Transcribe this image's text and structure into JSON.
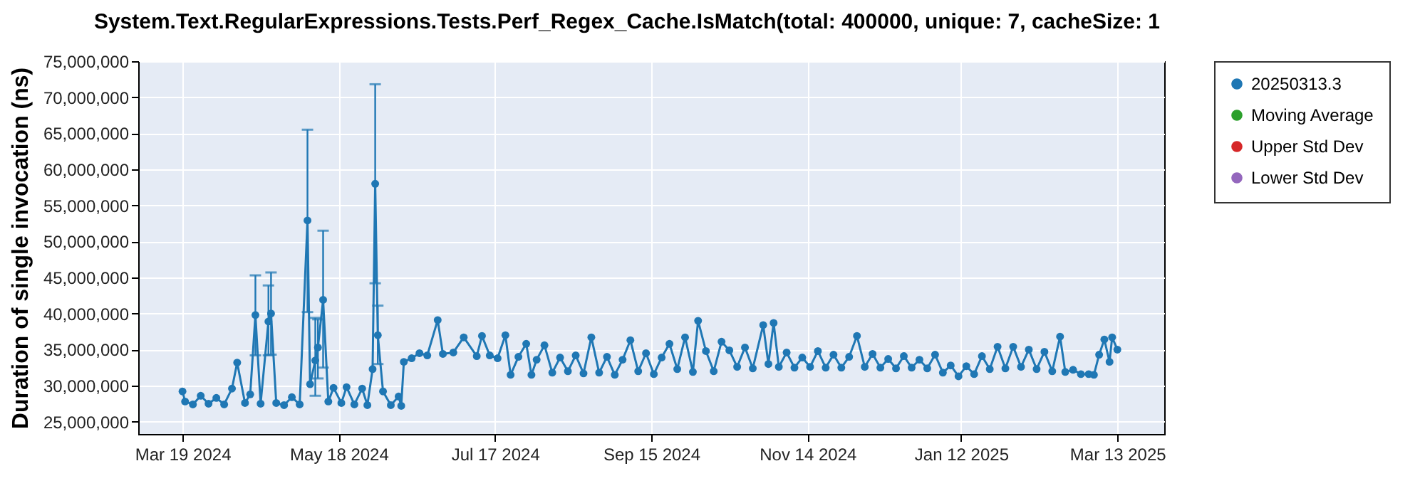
{
  "chart_data": {
    "type": "line",
    "title": "System.Text.RegularExpressions.Tests.Perf_Regex_Cache.IsMatch(total: 400000, unique: 7, cacheSize: 1",
    "ylabel": "Duration of single invocation (ns)",
    "x": [
      "2024-03-19",
      "2024-03-20",
      "2024-03-23",
      "2024-03-26",
      "2024-03-29",
      "2024-04-01",
      "2024-04-04",
      "2024-04-07",
      "2024-04-09",
      "2024-04-12",
      "2024-04-14",
      "2024-04-16",
      "2024-04-18",
      "2024-04-21",
      "2024-04-22",
      "2024-04-24",
      "2024-04-27",
      "2024-04-30",
      "2024-05-03",
      "2024-05-06",
      "2024-05-07",
      "2024-05-09",
      "2024-05-10",
      "2024-05-12",
      "2024-05-14",
      "2024-05-16",
      "2024-05-19",
      "2024-05-21",
      "2024-05-24",
      "2024-05-27",
      "2024-05-29",
      "2024-05-31",
      "2024-06-01",
      "2024-06-02",
      "2024-06-04",
      "2024-06-07",
      "2024-06-10",
      "2024-06-11",
      "2024-06-12",
      "2024-06-15",
      "2024-06-18",
      "2024-06-21",
      "2024-06-25",
      "2024-06-27",
      "2024-07-01",
      "2024-07-05",
      "2024-07-10",
      "2024-07-12",
      "2024-07-15",
      "2024-07-18",
      "2024-07-21",
      "2024-07-23",
      "2024-07-26",
      "2024-07-29",
      "2024-07-31",
      "2024-08-02",
      "2024-08-05",
      "2024-08-08",
      "2024-08-11",
      "2024-08-14",
      "2024-08-17",
      "2024-08-20",
      "2024-08-23",
      "2024-08-26",
      "2024-08-29",
      "2024-09-01",
      "2024-09-04",
      "2024-09-07",
      "2024-09-10",
      "2024-09-13",
      "2024-09-16",
      "2024-09-19",
      "2024-09-22",
      "2024-09-25",
      "2024-09-28",
      "2024-10-01",
      "2024-10-03",
      "2024-10-06",
      "2024-10-09",
      "2024-10-12",
      "2024-10-15",
      "2024-10-18",
      "2024-10-21",
      "2024-10-24",
      "2024-10-28",
      "2024-10-30",
      "2024-11-01",
      "2024-11-03",
      "2024-11-06",
      "2024-11-09",
      "2024-11-12",
      "2024-11-15",
      "2024-11-18",
      "2024-11-21",
      "2024-11-24",
      "2024-11-27",
      "2024-11-30",
      "2024-12-03",
      "2024-12-06",
      "2024-12-09",
      "2024-12-12",
      "2024-12-15",
      "2024-12-18",
      "2024-12-21",
      "2024-12-24",
      "2024-12-27",
      "2024-12-30",
      "2025-01-02",
      "2025-01-05",
      "2025-01-08",
      "2025-01-11",
      "2025-01-14",
      "2025-01-17",
      "2025-01-20",
      "2025-01-23",
      "2025-01-26",
      "2025-01-29",
      "2025-02-01",
      "2025-02-04",
      "2025-02-07",
      "2025-02-10",
      "2025-02-13",
      "2025-02-16",
      "2025-02-19",
      "2025-02-21",
      "2025-02-24",
      "2025-02-27",
      "2025-03-02",
      "2025-03-04",
      "2025-03-06",
      "2025-03-08",
      "2025-03-10",
      "2025-03-11",
      "2025-03-13"
    ],
    "series": [
      {
        "name": "20250313.3",
        "color": "#1f77b4",
        "values": [
          29200000,
          27800000,
          27400000,
          28600000,
          27500000,
          28300000,
          27400000,
          29600000,
          33200000,
          27600000,
          28800000,
          39800000,
          27500000,
          38900000,
          40000000,
          27600000,
          27300000,
          28400000,
          27400000,
          52900000,
          30200000,
          33500000,
          35300000,
          41900000,
          27800000,
          29700000,
          27600000,
          29800000,
          27400000,
          29600000,
          27300000,
          32300000,
          58000000,
          37000000,
          29200000,
          27300000,
          28500000,
          27200000,
          33300000,
          33800000,
          34500000,
          34200000,
          39100000,
          34400000,
          34600000,
          36700000,
          34100000,
          36900000,
          34200000,
          33800000,
          37000000,
          31500000,
          34000000,
          35800000,
          31500000,
          33600000,
          35600000,
          31800000,
          33900000,
          32000000,
          34200000,
          31700000,
          36700000,
          31800000,
          34000000,
          31500000,
          33600000,
          36300000,
          32000000,
          34500000,
          31600000,
          33900000,
          35800000,
          32300000,
          36700000,
          31900000,
          39000000,
          34800000,
          32000000,
          36100000,
          34900000,
          32600000,
          35300000,
          32400000,
          38400000,
          33000000,
          38700000,
          32600000,
          34600000,
          32500000,
          33900000,
          32600000,
          34800000,
          32500000,
          34300000,
          32500000,
          34000000,
          36900000,
          32600000,
          34400000,
          32500000,
          33700000,
          32400000,
          34100000,
          32500000,
          33600000,
          32400000,
          34300000,
          31800000,
          32800000,
          31300000,
          32700000,
          31600000,
          34100000,
          32300000,
          35400000,
          32400000,
          35400000,
          32600000,
          35000000,
          32300000,
          34700000,
          32000000,
          36800000,
          31900000,
          32200000,
          31600000,
          31600000,
          31500000,
          34300000,
          36400000,
          33300000,
          36700000,
          35000000
        ],
        "errors": [
          null,
          null,
          null,
          null,
          null,
          null,
          null,
          null,
          null,
          null,
          null,
          [
            34200000,
            45300000
          ],
          null,
          [
            34200000,
            43900000
          ],
          [
            34300000,
            45700000
          ],
          null,
          null,
          null,
          null,
          [
            40200000,
            65500000
          ],
          null,
          [
            28600000,
            39400000
          ],
          [
            31000000,
            39200000
          ],
          [
            32500000,
            51500000
          ],
          null,
          null,
          null,
          null,
          null,
          null,
          null,
          null,
          [
            44200000,
            71800000
          ],
          [
            33000000,
            41100000
          ],
          null,
          null,
          null,
          null,
          null,
          null,
          null,
          null,
          null,
          null,
          null,
          null,
          null,
          null,
          null,
          null,
          null,
          null,
          null,
          null,
          null,
          null,
          null,
          null,
          null,
          null,
          null,
          null,
          null,
          null,
          null,
          null,
          null,
          null,
          null,
          null,
          null,
          null,
          null,
          null,
          null,
          null,
          null,
          null,
          null,
          null,
          null,
          null,
          null,
          null,
          null,
          null,
          null,
          null,
          null,
          null,
          null,
          null,
          null,
          null,
          null,
          null,
          null,
          null,
          null,
          null,
          null,
          null,
          null,
          null,
          null,
          null,
          null,
          null,
          null,
          null,
          null,
          null,
          null,
          null,
          null,
          null,
          null,
          null,
          null,
          null,
          null,
          null,
          null,
          null,
          null,
          null,
          null,
          null,
          null,
          null,
          null,
          null,
          null,
          null
        ]
      },
      {
        "name": "Moving Average",
        "color": "#2ca02c",
        "values": [
          null,
          null,
          null,
          null,
          null,
          null,
          null,
          null,
          null,
          null,
          null,
          null,
          null,
          null,
          null,
          null,
          null,
          null,
          null,
          null,
          null,
          null,
          null,
          null,
          null,
          null,
          null,
          null,
          null,
          null,
          null,
          null,
          null,
          null,
          null,
          null,
          null,
          null,
          null,
          null,
          null,
          null,
          null,
          null,
          null,
          null,
          null,
          null,
          null,
          null,
          null,
          null,
          null,
          null,
          null,
          null,
          null,
          null,
          null,
          null,
          null,
          null,
          null,
          null,
          null,
          null,
          null,
          null,
          null,
          null,
          null,
          null,
          null,
          null,
          null,
          null,
          null,
          null,
          null,
          null,
          null,
          null,
          null,
          null,
          null,
          null,
          null,
          null,
          null,
          null,
          null,
          null,
          null,
          null,
          null,
          null,
          null,
          null,
          null,
          null,
          null,
          null,
          null,
          null,
          null,
          null,
          null,
          null,
          null,
          null,
          null,
          null,
          null,
          null,
          null,
          null,
          null,
          null,
          null,
          null,
          null,
          null,
          null,
          null,
          null,
          null,
          null,
          null,
          null,
          null,
          null,
          null,
          null,
          null
        ]
      },
      {
        "name": "Upper Std Dev",
        "color": "#d62728",
        "values": [
          null,
          null,
          null,
          null,
          null,
          null,
          null,
          null,
          null,
          null,
          null,
          null,
          null,
          null,
          null,
          null,
          null,
          null,
          null,
          null,
          null,
          null,
          null,
          null,
          null,
          null,
          null,
          null,
          null,
          null,
          null,
          null,
          null,
          null,
          null,
          null,
          null,
          null,
          null,
          null,
          null,
          null,
          null,
          null,
          null,
          null,
          null,
          null,
          null,
          null,
          null,
          null,
          null,
          null,
          null,
          null,
          null,
          null,
          null,
          null,
          null,
          null,
          null,
          null,
          null,
          null,
          null,
          null,
          null,
          null,
          null,
          null,
          null,
          null,
          null,
          null,
          null,
          null,
          null,
          null,
          null,
          null,
          null,
          null,
          null,
          null,
          null,
          null,
          null,
          null,
          null,
          null,
          null,
          null,
          null,
          null,
          null,
          null,
          null,
          null,
          null,
          null,
          null,
          null,
          null,
          null,
          null,
          null,
          null,
          null,
          null,
          null,
          null,
          null,
          null,
          null,
          null,
          null,
          null,
          null,
          null,
          null,
          null,
          null,
          null,
          null,
          null,
          null,
          null,
          null,
          null,
          null,
          null,
          null
        ]
      },
      {
        "name": "Lower Std Dev",
        "color": "#9467bd",
        "values": [
          null,
          null,
          null,
          null,
          null,
          null,
          null,
          null,
          null,
          null,
          null,
          null,
          null,
          null,
          null,
          null,
          null,
          null,
          null,
          null,
          null,
          null,
          null,
          null,
          null,
          null,
          null,
          null,
          null,
          null,
          null,
          null,
          null,
          null,
          null,
          null,
          null,
          null,
          null,
          null,
          null,
          null,
          null,
          null,
          null,
          null,
          null,
          null,
          null,
          null,
          null,
          null,
          null,
          null,
          null,
          null,
          null,
          null,
          null,
          null,
          null,
          null,
          null,
          null,
          null,
          null,
          null,
          null,
          null,
          null,
          null,
          null,
          null,
          null,
          null,
          null,
          null,
          null,
          null,
          null,
          null,
          null,
          null,
          null,
          null,
          null,
          null,
          null,
          null,
          null,
          null,
          null,
          null,
          null,
          null,
          null,
          null,
          null,
          null,
          null,
          null,
          null,
          null,
          null,
          null,
          null,
          null,
          null,
          null,
          null,
          null,
          null,
          null,
          null,
          null,
          null,
          null,
          null,
          null,
          null,
          null,
          null,
          null,
          null,
          null,
          null,
          null,
          null,
          null,
          null,
          null,
          null,
          null,
          null
        ]
      }
    ],
    "xlim": [
      "2024-03-02",
      "2025-03-31"
    ],
    "xticks": [
      {
        "value": "2024-03-19",
        "label": "Mar 19 2024"
      },
      {
        "value": "2024-05-18",
        "label": "May 18 2024"
      },
      {
        "value": "2024-07-17",
        "label": "Jul 17 2024"
      },
      {
        "value": "2024-09-15",
        "label": "Sep 15 2024"
      },
      {
        "value": "2024-11-14",
        "label": "Nov 14 2024"
      },
      {
        "value": "2025-01-12",
        "label": "Jan 12 2025"
      },
      {
        "value": "2025-03-13",
        "label": "Mar 13 2025"
      }
    ],
    "ylim": [
      23300000,
      75000000
    ],
    "yticks": [
      {
        "value": 25000000,
        "label": "25,000,000"
      },
      {
        "value": 30000000,
        "label": "30,000,000"
      },
      {
        "value": 35000000,
        "label": "35,000,000"
      },
      {
        "value": 40000000,
        "label": "40,000,000"
      },
      {
        "value": 45000000,
        "label": "45,000,000"
      },
      {
        "value": 50000000,
        "label": "50,000,000"
      },
      {
        "value": 55000000,
        "label": "55,000,000"
      },
      {
        "value": 60000000,
        "label": "60,000,000"
      },
      {
        "value": 65000000,
        "label": "65,000,000"
      },
      {
        "value": 70000000,
        "label": "70,000,000"
      },
      {
        "value": 75000000,
        "label": "75,000,000"
      }
    ],
    "grid": true,
    "legend": "right",
    "marker": "circle",
    "line_style": "solid"
  }
}
